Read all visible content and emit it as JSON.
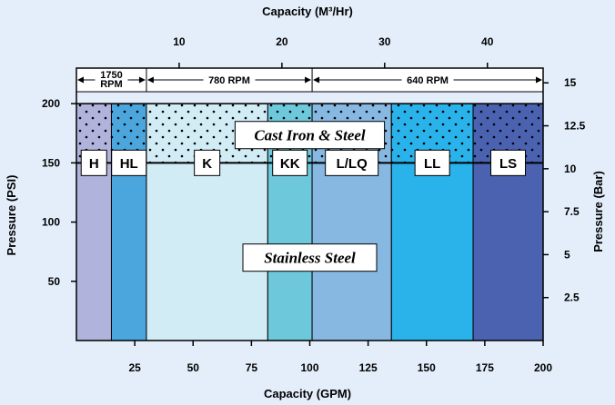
{
  "chart_data": {
    "type": "area",
    "x_bottom_label": "Capacity (GPM)",
    "x_top_label": "Capacity (M³/Hr)",
    "y_left_label": "Pressure (PSI)",
    "y_right_label": "Pressure (Bar)",
    "x_bottom_range": [
      0,
      200
    ],
    "x_bottom_ticks": [
      "25",
      "50",
      "75",
      "100",
      "125",
      "150",
      "175",
      "200"
    ],
    "x_top_ticks": [
      {
        "value": 10,
        "label": "10"
      },
      {
        "value": 20,
        "label": "20"
      },
      {
        "value": 30,
        "label": "30"
      },
      {
        "value": 40,
        "label": "40"
      }
    ],
    "y_left_range": [
      0,
      230
    ],
    "y_left_ticks": [
      "50",
      "100",
      "150",
      "200"
    ],
    "y_right_ticks": [
      {
        "value": 2.5,
        "label": "2.5"
      },
      {
        "value": 5,
        "label": "5"
      },
      {
        "value": 7.5,
        "label": "7.5"
      },
      {
        "value": 10,
        "label": "10"
      },
      {
        "value": 12.5,
        "label": "12.5"
      },
      {
        "value": 15,
        "label": "15"
      }
    ],
    "steel_pressure_limit": 200,
    "stainless_pressure_limit": 150,
    "bands": [
      {
        "label": "H",
        "x0": 0,
        "x1": 15,
        "color": "#b0b4dc"
      },
      {
        "label": "HL",
        "x0": 15,
        "x1": 30,
        "color": "#4aa6dc"
      },
      {
        "label": "K",
        "x0": 30,
        "x1": 82,
        "color": "#d2ecf6"
      },
      {
        "label": "KK",
        "x0": 82,
        "x1": 101,
        "color": "#6ec8dc"
      },
      {
        "label": "L/LQ",
        "x0": 101,
        "x1": 135,
        "color": "#86b8e2"
      },
      {
        "label": "LL",
        "x0": 135,
        "x1": 170,
        "color": "#2ab2ea"
      },
      {
        "label": "LS",
        "x0": 170,
        "x1": 200,
        "color": "#4a62b0"
      }
    ],
    "rpm_ranges": [
      {
        "label": "1750\nRPM",
        "x0": 0,
        "x1": 30
      },
      {
        "label": "780 RPM",
        "x0": 30,
        "x1": 101
      },
      {
        "label": "640 RPM",
        "x0": 101,
        "x1": 200
      }
    ],
    "materials": {
      "upper": "Cast Iron & Steel",
      "lower": "Stainless Steel"
    }
  }
}
